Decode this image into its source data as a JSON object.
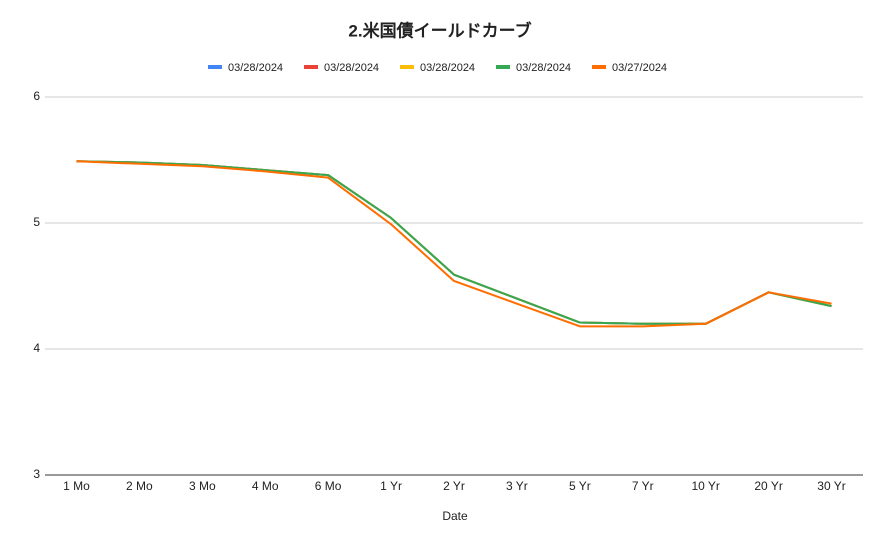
{
  "chart_data": {
    "type": "line",
    "title": "2.米国債イールドカーブ",
    "x_label": "Date",
    "categories": [
      "1 Mo",
      "2 Mo",
      "3 Mo",
      "4 Mo",
      "6 Mo",
      "1 Yr",
      "2 Yr",
      "3 Yr",
      "5 Yr",
      "7 Yr",
      "10 Yr",
      "20 Yr",
      "30 Yr"
    ],
    "series": [
      {
        "name": "03/28/2024",
        "color": "#4285f4",
        "values": [
          5.49,
          5.48,
          5.46,
          5.42,
          5.38,
          5.04,
          4.59,
          4.4,
          4.21,
          4.2,
          4.2,
          4.45,
          4.34
        ]
      },
      {
        "name": "03/28/2024",
        "color": "#ea4335",
        "values": [
          5.49,
          5.48,
          5.46,
          5.42,
          5.38,
          5.04,
          4.59,
          4.4,
          4.21,
          4.2,
          4.2,
          4.45,
          4.34
        ]
      },
      {
        "name": "03/28/2024",
        "color": "#fbbc04",
        "values": [
          5.49,
          5.48,
          5.46,
          5.42,
          5.38,
          5.04,
          4.59,
          4.4,
          4.21,
          4.2,
          4.2,
          4.45,
          4.34
        ]
      },
      {
        "name": "03/28/2024",
        "color": "#34a853",
        "values": [
          5.49,
          5.48,
          5.46,
          5.42,
          5.38,
          5.04,
          4.59,
          4.4,
          4.21,
          4.2,
          4.2,
          4.45,
          4.34
        ]
      },
      {
        "name": "03/27/2024",
        "color": "#ff6d01",
        "values": [
          5.49,
          5.47,
          5.45,
          5.41,
          5.36,
          4.99,
          4.54,
          4.36,
          4.18,
          4.18,
          4.2,
          4.45,
          4.36
        ]
      }
    ],
    "ylim": [
      3,
      6
    ],
    "yticks": [
      3,
      4,
      5,
      6
    ],
    "grid": true,
    "legend": "top"
  }
}
